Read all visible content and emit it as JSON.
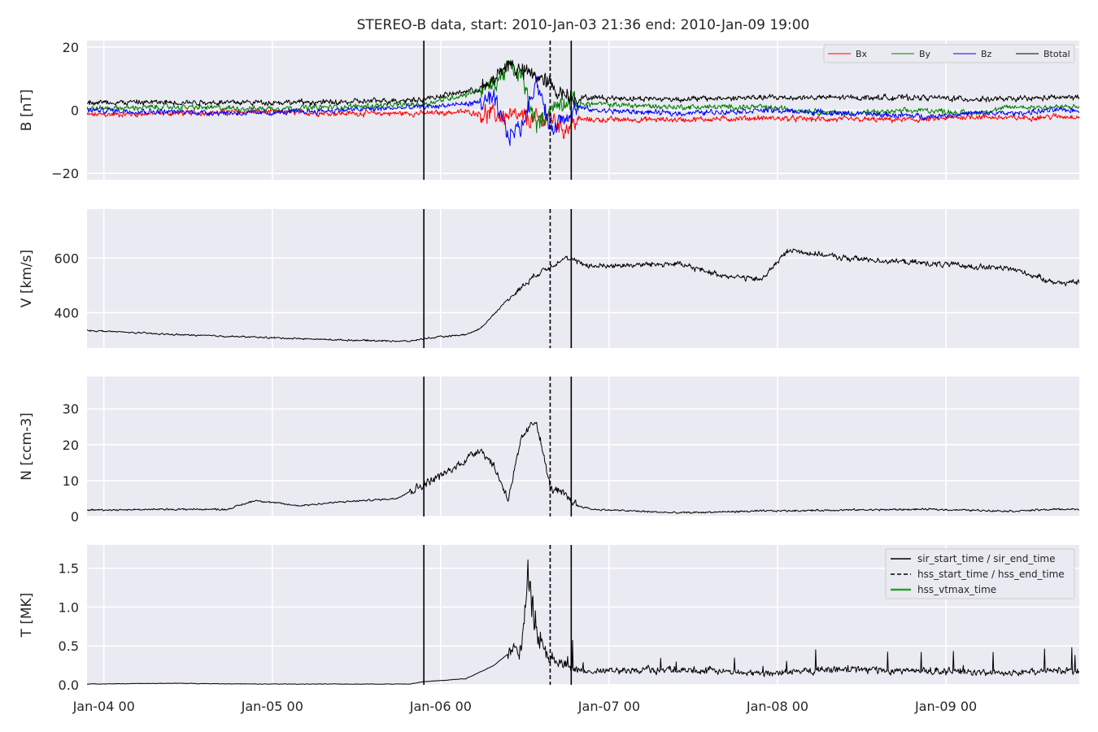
{
  "title": "STEREO-B data, start: 2010-Jan-03 21:36  end: 2010-Jan-09 19:00",
  "chart_data": {
    "type": "line",
    "title": "STEREO-B data, start: 2010-Jan-03 21:36  end: 2010-Jan-09 19:00",
    "x_range": [
      "2010-01-03 21:36",
      "2010-01-09 19:00"
    ],
    "x_ticks": [
      "2010-01-04 00:00",
      "2010-01-05 00:00",
      "2010-01-06 00:00",
      "2010-01-07 00:00",
      "2010-01-08 00:00",
      "2010-01-09 00:00"
    ],
    "x_tick_labels": [
      "Jan-04 00",
      "Jan-05 00",
      "Jan-06 00",
      "Jan-07 00",
      "Jan-08 00",
      "Jan-09 00"
    ],
    "grid": true,
    "event_lines": {
      "sir_start_time": "2010-01-05 21:36",
      "hss_start_time": "2010-01-06 15:36",
      "sir_end_time": "2010-01-06 18:36"
    },
    "panels": [
      {
        "ylabel": "B [nT]",
        "ylim": [
          -22,
          22
        ],
        "yticks": [
          -20,
          0,
          20
        ],
        "legend": "top-right",
        "series": [
          {
            "name": "Bx",
            "color": "#ff0000",
            "hours": [
              0,
              12,
              24,
              36,
              48,
              54,
              60,
              64,
              66,
              68,
              70,
              72,
              84,
              96,
              108,
              120,
              126,
              132,
              138
            ],
            "values": [
              -1.5,
              -1,
              -0.5,
              -1,
              -1,
              -0.5,
              -2,
              -3,
              -2,
              -6,
              -3,
              -3,
              -3,
              -2.5,
              -3,
              -3,
              -2,
              -2.5,
              -2
            ]
          },
          {
            "name": "By",
            "color": "#008000",
            "hours": [
              0,
              12,
              24,
              36,
              48,
              54,
              58,
              60,
              62,
              64,
              66,
              68,
              70,
              72,
              84,
              96,
              108,
              120,
              126,
              132,
              138
            ],
            "values": [
              0.5,
              1,
              0.5,
              1,
              2,
              5,
              8,
              14,
              10,
              -5,
              0,
              3,
              2,
              2,
              1,
              1,
              -1,
              0,
              -1,
              1,
              1
            ]
          },
          {
            "name": "Bz",
            "color": "#0000ff",
            "hours": [
              0,
              12,
              24,
              36,
              48,
              54,
              58,
              60,
              62,
              64,
              66,
              68,
              70,
              72,
              84,
              96,
              108,
              120,
              126,
              132,
              138
            ],
            "values": [
              0,
              -0.5,
              -1,
              0,
              1,
              2,
              3,
              -8,
              -5,
              10,
              -6,
              -2,
              1,
              0,
              -1,
              0,
              -1,
              -2,
              -1,
              -1,
              0
            ]
          },
          {
            "name": "Btotal",
            "color": "#000000",
            "hours": [
              0,
              12,
              24,
              36,
              48,
              54,
              57,
              60,
              62,
              64,
              66,
              68,
              70,
              72,
              84,
              96,
              108,
              120,
              126,
              132,
              138
            ],
            "values": [
              2.5,
              2.5,
              2.5,
              2.5,
              3.5,
              6,
              7,
              15,
              12,
              11,
              8,
              5,
              4,
              4,
              3.5,
              4,
              4,
              4,
              3.5,
              3.5,
              4
            ]
          }
        ]
      },
      {
        "ylabel": "V [km/s]",
        "ylim": [
          270,
          780
        ],
        "yticks": [
          400,
          600
        ],
        "series": [
          {
            "name": "V",
            "color": "#000000",
            "hours": [
              0,
              12,
              24,
              36,
              46,
              48,
              54,
              56,
              60,
              64,
              66,
              68,
              72,
              84,
              90,
              96,
              100,
              108,
              120,
              132,
              138
            ],
            "values": [
              335,
              320,
              310,
              300,
              295,
              305,
              320,
              340,
              450,
              540,
              570,
              600,
              570,
              580,
              540,
              520,
              630,
              600,
              580,
              560,
              510
            ]
          }
        ]
      },
      {
        "ylabel": "N [ccm-3]",
        "ylim": [
          0,
          39
        ],
        "yticks": [
          0,
          10,
          20,
          30
        ],
        "series": [
          {
            "name": "N",
            "color": "#000000",
            "hours": [
              0,
              12,
              20,
              24,
              30,
              36,
              44,
              46,
              48,
              52,
              56,
              58,
              60,
              62,
              64,
              66,
              68,
              70,
              72,
              84,
              96,
              108,
              120,
              132,
              138
            ],
            "values": [
              1.8,
              2,
              2,
              4.5,
              3,
              4,
              5,
              7,
              9,
              13,
              19,
              14,
              5,
              22,
              27,
              8,
              6,
              3,
              2,
              1,
              1.5,
              1.8,
              2,
              1.5,
              2
            ]
          }
        ]
      },
      {
        "ylabel": "T [MK]",
        "ylim": [
          0,
          1.8
        ],
        "yticks": [
          0.0,
          0.5,
          1.0,
          1.5
        ],
        "legend": "top-right",
        "series": [
          {
            "name": "T",
            "color": "#000000",
            "hours": [
              0,
              12,
              24,
              36,
              46,
              48,
              54,
              58,
              60,
              62,
              63,
              64,
              65,
              66,
              68,
              70,
              72,
              84,
              96,
              108,
              120,
              132,
              138
            ],
            "values": [
              0.01,
              0.02,
              0.01,
              0.01,
              0.01,
              0.04,
              0.08,
              0.25,
              0.4,
              0.5,
              1.5,
              0.8,
              0.5,
              0.35,
              0.25,
              0.18,
              0.17,
              0.2,
              0.15,
              0.2,
              0.18,
              0.15,
              0.18
            ]
          }
        ]
      }
    ],
    "event_legend": [
      {
        "label": "sir_start_time / sir_end_time",
        "color": "#000000",
        "style": "solid"
      },
      {
        "label": "hss_start_time / hss_end_time",
        "color": "#000000",
        "style": "dashed"
      },
      {
        "label": "hss_vtmax_time",
        "color": "#2ca02c",
        "style": "solid"
      }
    ]
  }
}
